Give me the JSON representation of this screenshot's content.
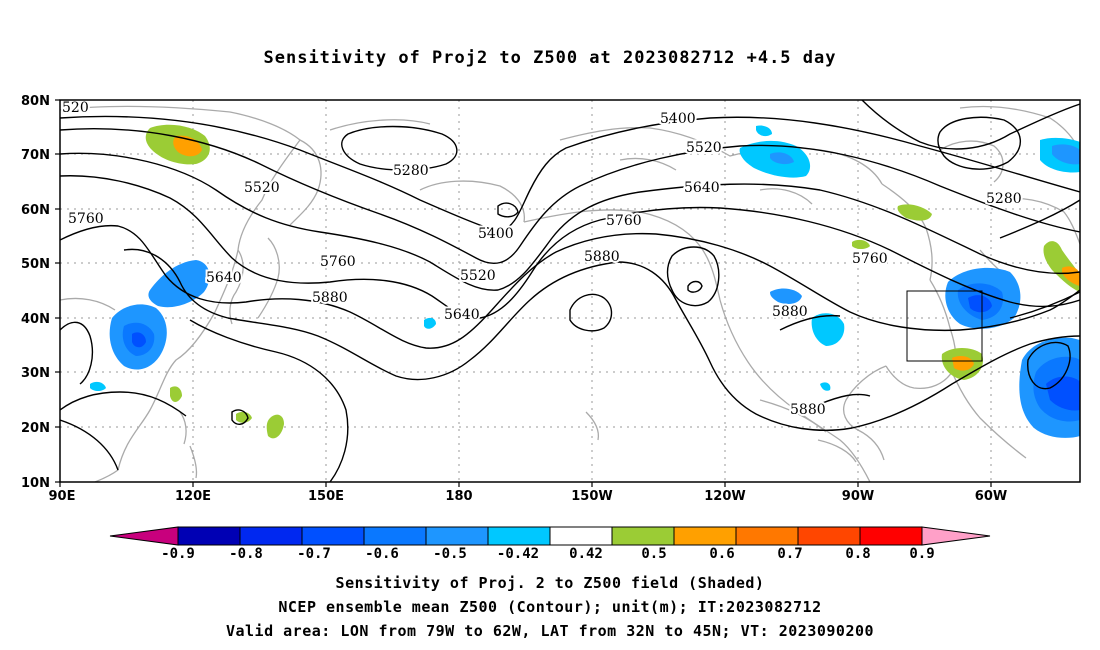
{
  "title": "Sensitivity of Proj2 to Z500 at 2023082712 +4.5 day",
  "lat_labels": [
    "80N",
    "70N",
    "60N",
    "50N",
    "40N",
    "30N",
    "20N",
    "10N"
  ],
  "lon_labels": [
    "90E",
    "120E",
    "150E",
    "180",
    "150W",
    "120W",
    "90W",
    "60W"
  ],
  "contour_labels": [
    {
      "text": "520"
    },
    {
      "text": "5760"
    },
    {
      "text": "5520"
    },
    {
      "text": "5640"
    },
    {
      "text": "5760"
    },
    {
      "text": "5880"
    },
    {
      "text": "5280"
    },
    {
      "text": "5400"
    },
    {
      "text": "5520"
    },
    {
      "text": "5640"
    },
    {
      "text": "5760"
    },
    {
      "text": "5880"
    },
    {
      "text": "5400"
    },
    {
      "text": "5520"
    },
    {
      "text": "5640"
    },
    {
      "text": "5880"
    },
    {
      "text": "5760"
    },
    {
      "text": "5880"
    },
    {
      "text": "5280"
    }
  ],
  "colorbar": {
    "labels": [
      "-0.9",
      "-0.8",
      "-0.7",
      "-0.6",
      "-0.5",
      "-0.42",
      "0.42",
      "0.5",
      "0.6",
      "0.7",
      "0.8",
      "0.9"
    ],
    "colors": [
      "#c8007d",
      "#0000b4",
      "#0028f0",
      "#0050ff",
      "#0a78ff",
      "#1e96ff",
      "#00c8ff",
      "#ffffff",
      "#9bcc35",
      "#ffa000",
      "#ff7800",
      "#ff4600",
      "#ff0000",
      "#ffa0c8"
    ]
  },
  "captions": [
    "Sensitivity of Proj. 2 to Z500 field (Shaded)",
    "NCEP ensemble mean Z500 (Contour); unit(m); IT:2023082712",
    "Valid area: LON from 79W to 62W, LAT from 32N to 45N; VT: 2023090200"
  ]
}
